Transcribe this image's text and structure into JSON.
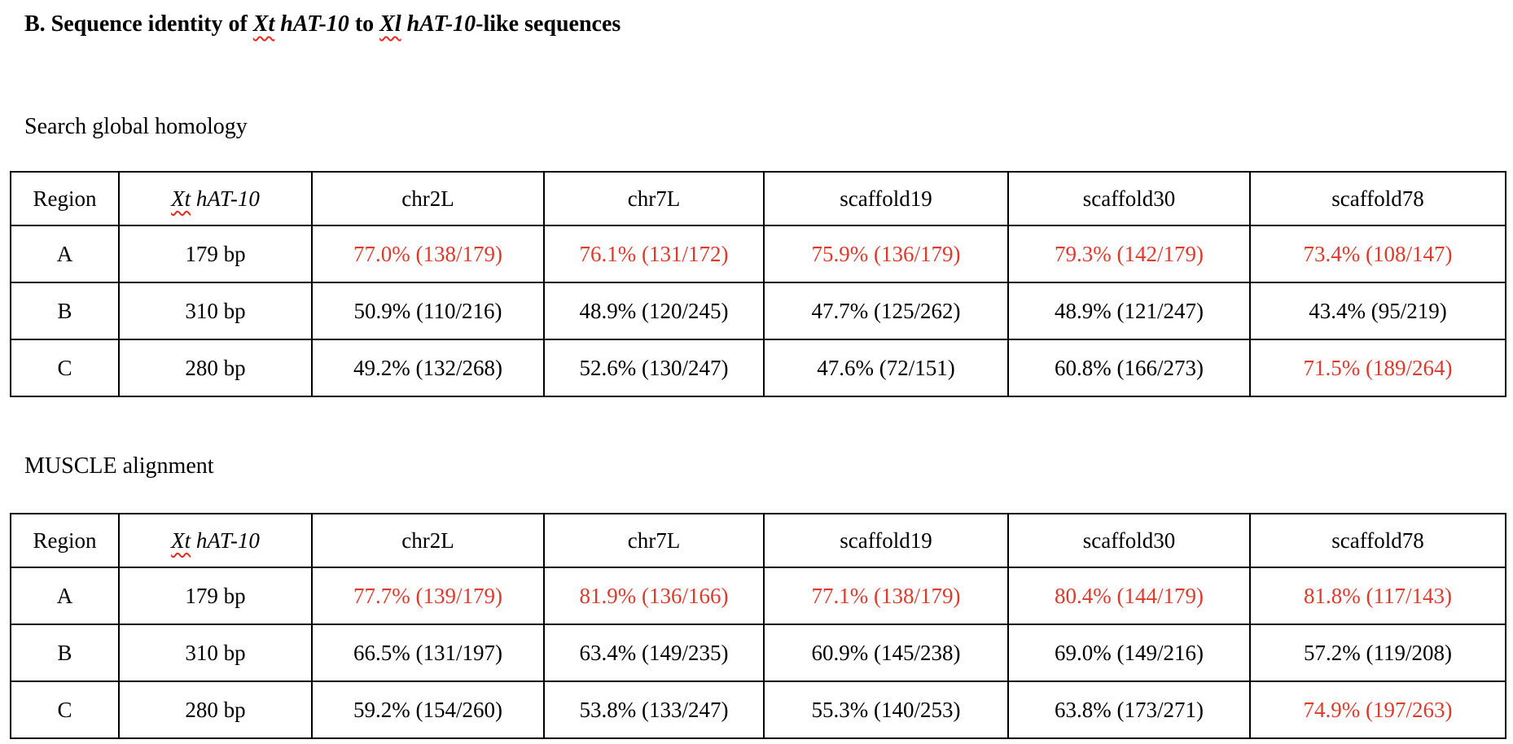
{
  "colors": {
    "highlight_red": "#dd3a2b",
    "squiggle_red": "#e8281e",
    "text_black": "#000000"
  },
  "title": {
    "prefix": "B. Sequence identity of ",
    "species1": "Xt",
    "gene1": " hAT-10",
    "connector": " to ",
    "species2": "Xl",
    "gene2": " hAT-10",
    "suffix": "-like sequences"
  },
  "tables": [
    {
      "section_label": "Search global homology",
      "header": {
        "region": "Region",
        "query_species": "Xt",
        "query_gene": " hAT-10",
        "targets": [
          "chr2L",
          "chr7L",
          "scaffold19",
          "scaffold30",
          "scaffold78"
        ]
      },
      "rows": [
        {
          "region": "A",
          "length": "179 bp",
          "values": [
            "77.0% (138/179)",
            "76.1% (131/172)",
            "75.9% (136/179)",
            "79.3% (142/179)",
            "73.4% (108/147)"
          ],
          "highlighted": [
            true,
            true,
            true,
            true,
            true
          ]
        },
        {
          "region": "B",
          "length": "310 bp",
          "values": [
            "50.9% (110/216)",
            "48.9% (120/245)",
            "47.7% (125/262)",
            "48.9% (121/247)",
            "43.4% (95/219)"
          ],
          "highlighted": [
            false,
            false,
            false,
            false,
            false
          ]
        },
        {
          "region": "C",
          "length": "280 bp",
          "values": [
            "49.2% (132/268)",
            "52.6% (130/247)",
            "47.6% (72/151)",
            "60.8% (166/273)",
            "71.5% (189/264)"
          ],
          "highlighted": [
            false,
            false,
            false,
            false,
            true
          ]
        }
      ]
    },
    {
      "section_label": "MUSCLE alignment",
      "header": {
        "region": "Region",
        "query_species": "Xt",
        "query_gene": " hAT-10",
        "targets": [
          "chr2L",
          "chr7L",
          "scaffold19",
          "scaffold30",
          "scaffold78"
        ]
      },
      "rows": [
        {
          "region": "A",
          "length": "179 bp",
          "values": [
            "77.7% (139/179)",
            "81.9% (136/166)",
            "77.1% (138/179)",
            "80.4% (144/179)",
            "81.8% (117/143)"
          ],
          "highlighted": [
            true,
            true,
            true,
            true,
            true
          ]
        },
        {
          "region": "B",
          "length": "310 bp",
          "values": [
            "66.5% (131/197)",
            "63.4% (149/235)",
            "60.9% (145/238)",
            "69.0% (149/216)",
            "57.2% (119/208)"
          ],
          "highlighted": [
            false,
            false,
            false,
            false,
            false
          ]
        },
        {
          "region": "C",
          "length": "280 bp",
          "values": [
            "59.2% (154/260)",
            "53.8% (133/247)",
            "55.3% (140/253)",
            "63.8% (173/271)",
            "74.9% (197/263)"
          ],
          "highlighted": [
            false,
            false,
            false,
            false,
            true
          ]
        }
      ]
    }
  ]
}
